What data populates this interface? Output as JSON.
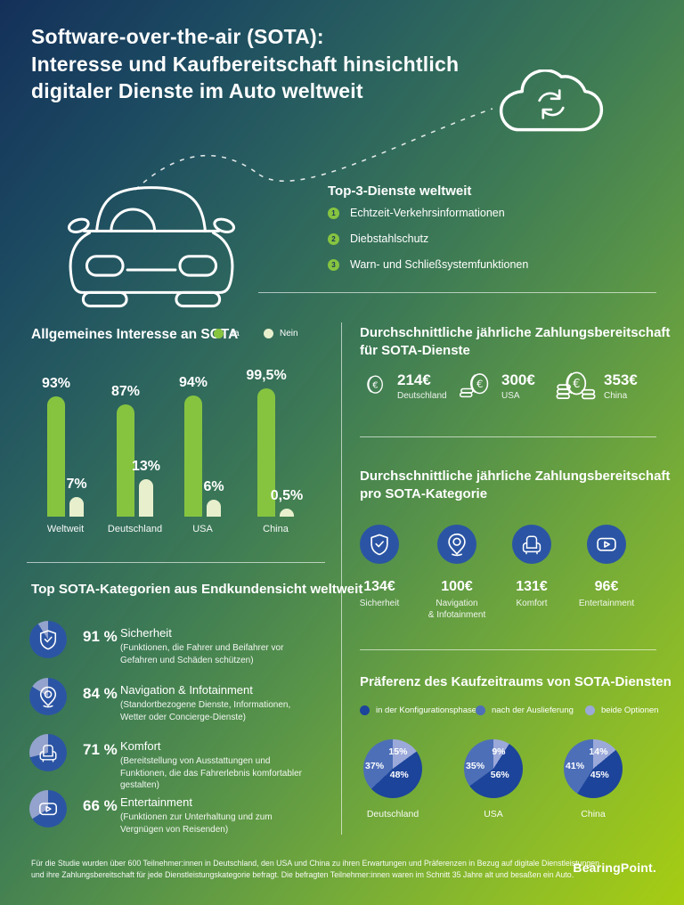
{
  "colors": {
    "accent_green": "#86c440",
    "pale_green": "#e8efcd",
    "circle_blue": "#2b55a4",
    "wedge_light": "#94a3cd",
    "pie_dark": "#1c449b",
    "pie_medium": "#4d6fb8",
    "pie_light": "#9ba9da"
  },
  "header": {
    "title_line1": "Software-over-the-air (SOTA):",
    "title_line2": "Interesse und Kaufbereitschaft hinsichtlich",
    "title_line3": "digitaler Dienste im Auto weltweit"
  },
  "top_services": {
    "title": "Top-3-Dienste weltweit",
    "items": [
      {
        "rank": "1",
        "label": "Echtzeit-Verkehrsinformationen"
      },
      {
        "rank": "2",
        "label": "Diebstahlschutz"
      },
      {
        "rank": "3",
        "label": "Warn- und Schließsystemfunktionen"
      }
    ]
  },
  "interest": {
    "title": "Allgemeines Interesse an SOTA",
    "legend": [
      {
        "label": "Ja"
      },
      {
        "label": "Nein"
      }
    ]
  },
  "willingness_services": {
    "title_line1": "Durchschnittliche jährliche Zahlungsbereitschaft",
    "title_line2": "für SOTA-Dienste",
    "items": [
      {
        "value": "214€",
        "label": "Deutschland",
        "coins": 1
      },
      {
        "value": "300€",
        "label": "USA",
        "coins": 2
      },
      {
        "value": "353€",
        "label": "China",
        "coins": 3
      }
    ]
  },
  "willingness_categories": {
    "title_line1": "Durchschnittliche jährliche Zahlungsbereitschaft",
    "title_line2": "pro SOTA-Kategorie",
    "items": [
      {
        "value": "134€",
        "label": "Sicherheit",
        "icon": "shield"
      },
      {
        "value": "100€",
        "label": "Navigation",
        "label2": "& Infotainment",
        "icon": "pin"
      },
      {
        "value": "131€",
        "label": "Komfort",
        "icon": "armchair"
      },
      {
        "value": "96€",
        "label": "Entertainment",
        "icon": "play"
      }
    ]
  },
  "top_categories": {
    "title": "Top SOTA-Kategorien aus Endkundensicht weltweit",
    "items": [
      {
        "percent": 91,
        "percent_label": "91 %",
        "name": "Sicherheit",
        "description": "(Funktionen, die Fahrer und Beifahrer vor Gefahren und Schäden schützen)",
        "icon": "shield"
      },
      {
        "percent": 84,
        "percent_label": "84 %",
        "name": "Navigation & Infotainment",
        "description": "(Standortbezogene Dienste, Informationen, Wetter oder Concierge-Dienste)",
        "icon": "pin"
      },
      {
        "percent": 71,
        "percent_label": "71 %",
        "name": "Komfort",
        "description": "(Bereitstellung von Ausstattungen und Funktionen, die das Fahrerlebnis komfortabler gestalten)",
        "icon": "armchair"
      },
      {
        "percent": 66,
        "percent_label": "66 %",
        "name": "Entertainment",
        "description": "(Funktionen zur Unterhaltung und zum Vergnügen von Reisenden)",
        "icon": "play"
      }
    ]
  },
  "timing": {
    "title": "Präferenz des Kaufzeitraums von SOTA-Diensten",
    "legend": [
      {
        "label": "in der Konfigurationsphase",
        "color_key": "pie_dark"
      },
      {
        "label": "nach der Auslieferung",
        "color_key": "pie_medium"
      },
      {
        "label": "beide Optionen",
        "color_key": "pie_light"
      }
    ]
  },
  "footer": {
    "note_line1": "Für die Studie wurden über 600 Teilnehmer:innen in Deutschland, den USA und China zu ihren Erwartungen und Präferenzen in Bezug auf digitale Dienstleistungen",
    "note_line2": "und ihre Zahlungsbereitschaft für jede Dienstleistungskategorie befragt. Die befragten Teilnehmer:innen waren im Schnitt 35 Jahre alt und besaßen ein Auto.",
    "brand": "BearingPoint."
  },
  "chart_data": [
    {
      "type": "bar",
      "title": "Allgemeines Interesse an SOTA",
      "categories": [
        "Weltweit",
        "Deutschland",
        "USA",
        "China"
      ],
      "series": [
        {
          "name": "Ja",
          "values": [
            93,
            87,
            94,
            99.5
          ],
          "labels": [
            "93%",
            "87%",
            "94%",
            "99,5%"
          ],
          "color": "#86c440"
        },
        {
          "name": "Nein",
          "values": [
            7,
            13,
            6,
            0.5
          ],
          "labels": [
            "7%",
            "13%",
            "6%",
            "0,5%"
          ],
          "color": "#e8efcd"
        }
      ],
      "unit": "percent",
      "ylim": [
        0,
        100
      ],
      "grid": false,
      "legend_position": "top-right"
    },
    {
      "type": "pie",
      "title": "Präferenz des Kaufzeitraums von SOTA-Diensten",
      "legend": [
        "in der Konfigurationsphase",
        "nach der Auslieferung",
        "beide Optionen"
      ],
      "pies": [
        {
          "label": "Deutschland",
          "slices": [
            {
              "name": "in der Konfigurationsphase",
              "value": 48,
              "label": "48%"
            },
            {
              "name": "nach der Auslieferung",
              "value": 37,
              "label": "37%"
            },
            {
              "name": "beide Optionen",
              "value": 15,
              "label": "15%"
            }
          ]
        },
        {
          "label": "USA",
          "slices": [
            {
              "name": "in der Konfigurationsphase",
              "value": 56,
              "label": "56%"
            },
            {
              "name": "nach der Auslieferung",
              "value": 35,
              "label": "35%"
            },
            {
              "name": "beide Optionen",
              "value": 9,
              "label": "9%"
            }
          ]
        },
        {
          "label": "China",
          "slices": [
            {
              "name": "in der Konfigurationsphase",
              "value": 45,
              "label": "45%"
            },
            {
              "name": "nach der Auslieferung",
              "value": 41,
              "label": "41%"
            },
            {
              "name": "beide Optionen",
              "value": 14,
              "label": "14%"
            }
          ]
        }
      ]
    }
  ]
}
